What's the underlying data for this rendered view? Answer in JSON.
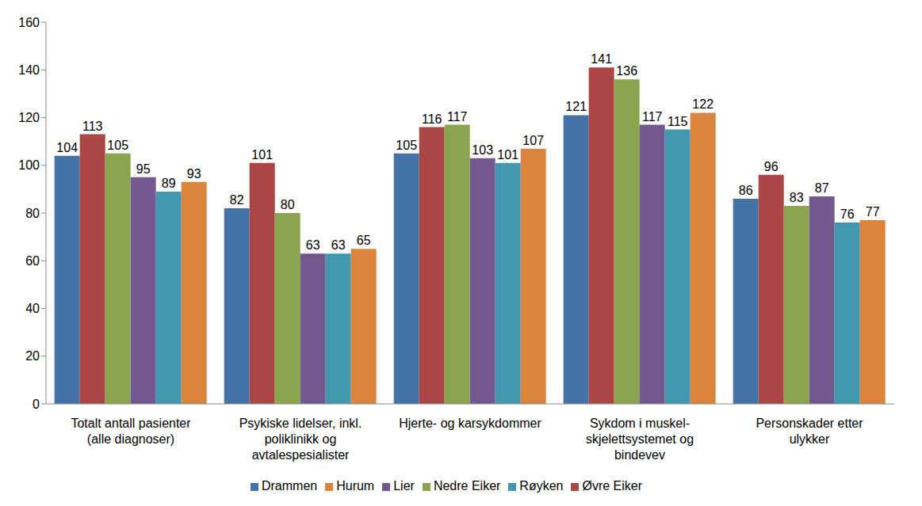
{
  "chart_data": {
    "type": "bar",
    "categories": [
      "Totalt antall pasienter (alle diagnoser)",
      "Psykiske lidelser, inkl. poliklinikk og avtalespesialister",
      "Hjerte- og karsykdommer",
      "Sykdom i muskel-skjelettsystemet og bindevev",
      "Personskader etter ulykker"
    ],
    "series": [
      {
        "name": "Drammen",
        "color": "#4572a7",
        "values": [
          104,
          82,
          105,
          121,
          86
        ]
      },
      {
        "name": "Øvre Eiker",
        "color": "#aa4643",
        "values": [
          113,
          101,
          116,
          141,
          96
        ]
      },
      {
        "name": "Nedre Eiker",
        "color": "#89a54e",
        "values": [
          105,
          80,
          117,
          136,
          83
        ]
      },
      {
        "name": "Lier",
        "color": "#71588f",
        "values": [
          95,
          63,
          103,
          117,
          87
        ]
      },
      {
        "name": "Røyken",
        "color": "#4198af",
        "values": [
          89,
          63,
          101,
          115,
          76
        ]
      },
      {
        "name": "Hurum",
        "color": "#db843d",
        "values": [
          93,
          65,
          107,
          122,
          77
        ]
      }
    ],
    "ylim": [
      0,
      160
    ],
    "yticks": [
      0,
      20,
      40,
      60,
      80,
      100,
      120,
      140,
      160
    ],
    "grid": false,
    "legend": "bottom",
    "data_labels": true
  }
}
